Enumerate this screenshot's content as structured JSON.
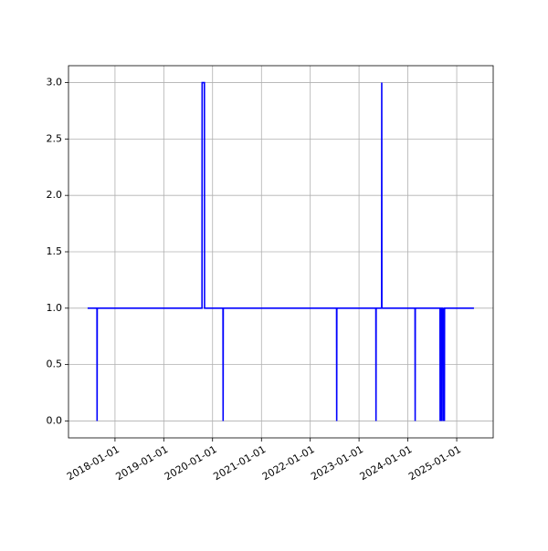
{
  "chart_data": {
    "type": "line",
    "x": [
      "2017-06-10",
      "2017-08-19",
      "2017-08-20",
      "2017-08-21",
      "2019-10-14",
      "2019-10-15",
      "2019-11-01",
      "2019-11-02",
      "2020-03-19",
      "2020-03-20",
      "2020-03-21",
      "2022-07-17",
      "2022-07-18",
      "2022-07-19",
      "2023-05-07",
      "2023-05-08",
      "2023-05-09",
      "2023-06-19",
      "2023-06-20",
      "2023-06-21",
      "2024-02-24",
      "2024-02-25",
      "2024-02-26",
      "2024-08-29",
      "2024-08-30",
      "2024-08-31",
      "2024-09-08",
      "2024-09-09",
      "2024-09-19",
      "2024-09-20",
      "2024-09-21",
      "2024-10-01",
      "2024-10-02",
      "2025-05-10"
    ],
    "series": [
      {
        "color": "#0000ff",
        "values": [
          1,
          1,
          0,
          1,
          1,
          3,
          3,
          1,
          1,
          0,
          1,
          1,
          0,
          1,
          1,
          0,
          1,
          1,
          3,
          1,
          1,
          0,
          1,
          1,
          0,
          1,
          0,
          1,
          1,
          0,
          1,
          0,
          1,
          1
        ]
      }
    ],
    "xlim": [
      "2017-01-18",
      "2025-10-01"
    ],
    "xticks": [
      "2018-01-01",
      "2019-01-01",
      "2020-01-01",
      "2021-01-01",
      "2022-01-01",
      "2023-01-01",
      "2024-01-01",
      "2025-01-01"
    ],
    "ylim": [
      -0.15,
      3.15
    ],
    "yticks": [
      {
        "value": 0,
        "label": "0.0"
      },
      0.5,
      {
        "value": 1,
        "label": "1.0"
      },
      1.5,
      {
        "value": 2,
        "label": "2.0"
      },
      2.5,
      {
        "value": 3,
        "label": "3.0"
      }
    ],
    "grid": true
  }
}
